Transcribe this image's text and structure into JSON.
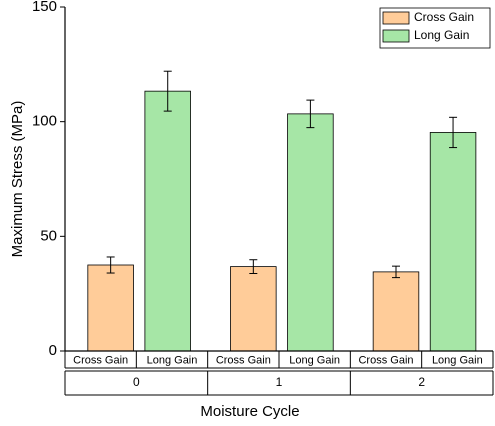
{
  "chart_data": {
    "type": "bar",
    "categories": [
      "0",
      "1",
      "2"
    ],
    "series": [
      {
        "name": "Cross Gain",
        "color": "#ffcc99",
        "values": [
          37.5,
          36.8,
          34.5
        ],
        "errors": [
          3.5,
          3,
          2.5
        ]
      },
      {
        "name": "Long Gain",
        "color": "#a6e6a6",
        "values": [
          113.3,
          103.4,
          95.3
        ],
        "errors": [
          8.7,
          6,
          6.6
        ]
      }
    ],
    "xlabel": "Moisture Cycle",
    "ylabel": "Maximum Stress (MPa)",
    "ylim": [
      0,
      150
    ],
    "yticks": [
      0,
      50,
      100,
      150
    ],
    "legend": "upper right"
  }
}
